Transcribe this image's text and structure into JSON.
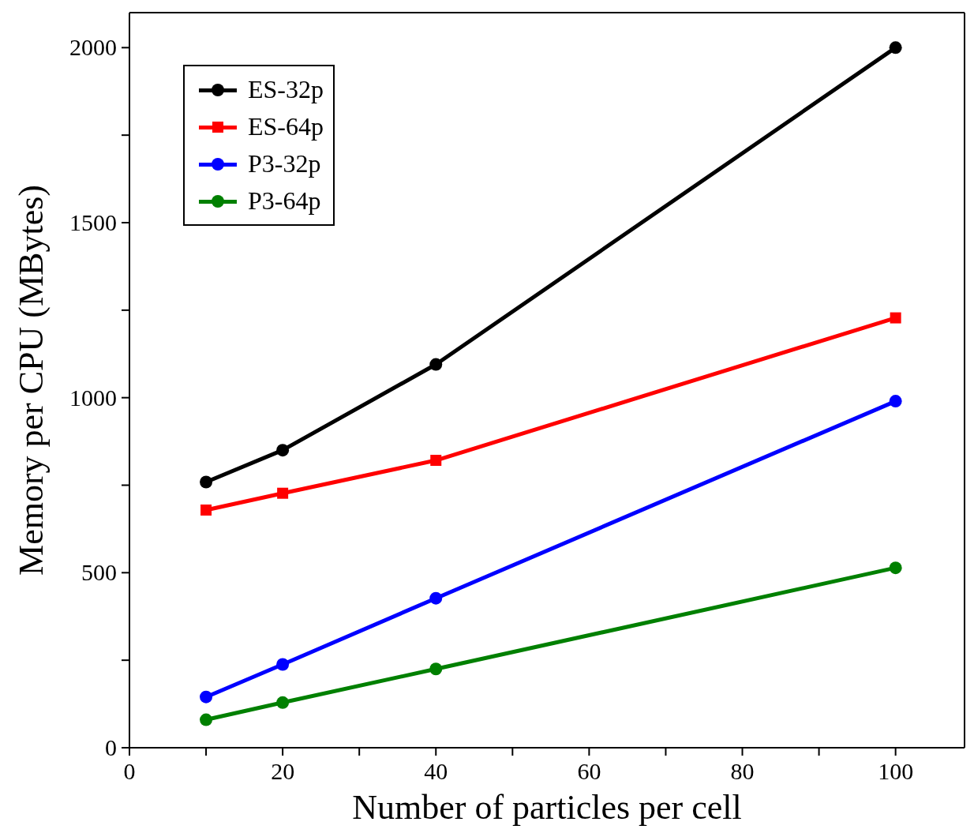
{
  "chart_data": {
    "type": "line",
    "xlabel": "Number of particles per cell",
    "ylabel": "Memory per CPU (MBytes)",
    "x": [
      10,
      20,
      40,
      100
    ],
    "series": [
      {
        "name": "ES-32p",
        "color": "#000000",
        "marker": "circle",
        "values": [
          759,
          850,
          1095,
          2000
        ]
      },
      {
        "name": "ES-64p",
        "color": "#ff0000",
        "marker": "square",
        "values": [
          679,
          727,
          821,
          1228
        ]
      },
      {
        "name": "P3-32p",
        "color": "#0000ff",
        "marker": "circle",
        "values": [
          145,
          238,
          427,
          990
        ]
      },
      {
        "name": "P3-64p",
        "color": "#008000",
        "marker": "circle",
        "values": [
          80,
          129,
          225,
          514
        ]
      }
    ],
    "xlim": [
      0,
      109
    ],
    "ylim": [
      0,
      2100
    ],
    "xticks": [
      0,
      {
        "value": 10,
        "label": null
      },
      20,
      {
        "value": 30,
        "label": null
      },
      40,
      {
        "value": 50,
        "label": null
      },
      60,
      {
        "value": 70,
        "label": null
      },
      80,
      {
        "value": 90,
        "label": null
      },
      100
    ],
    "yticks": [
      0,
      {
        "value": 250,
        "label": null
      },
      500,
      {
        "value": 750,
        "label": null
      },
      1000,
      {
        "value": 1250,
        "label": null
      },
      1500,
      {
        "value": 1750,
        "label": null
      },
      2000
    ],
    "grid": false,
    "legend": "top left",
    "line_style": "solid"
  }
}
